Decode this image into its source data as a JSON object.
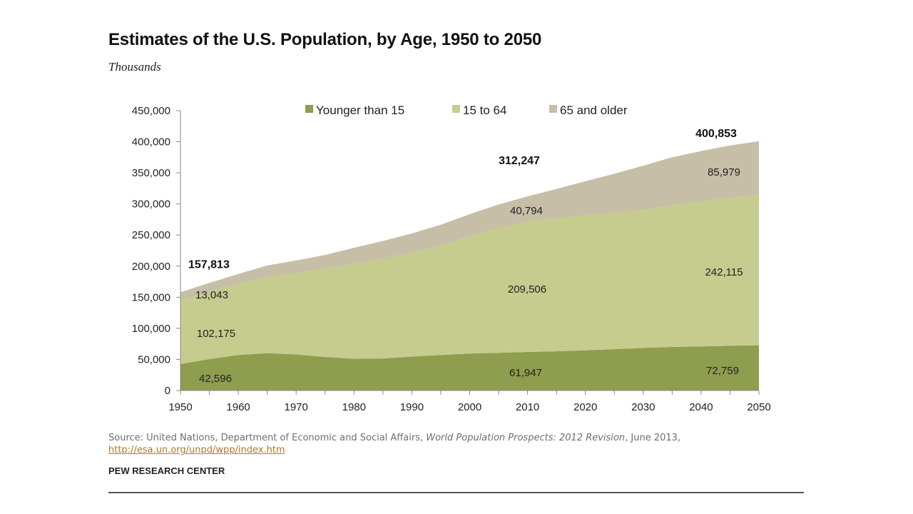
{
  "header": {
    "title": "Estimates of the U.S. Population, by Age, 1950 to 2050",
    "subtitle": "Thousands"
  },
  "source": {
    "prefix": "Source: United Nations, Department of Economic and Social Affairs,",
    "italic": "World Population Prospects: 2012 Revision",
    "suffix": ", June 2013,",
    "link": "http://esa.un.org/unpd/wpp/index.htm"
  },
  "footer": {
    "brand": "PEW RESEARCH CENTER"
  },
  "colors": {
    "younger": "#8f9d4e",
    "working": "#c6cb8e",
    "older": "#c6bea6",
    "axis": "#888888"
  },
  "chart_data": {
    "type": "area",
    "stacked": true,
    "title": "Estimates of the U.S. Population, by Age, 1950 to 2050",
    "subtitle": "Thousands",
    "xlabel": "",
    "ylabel": "",
    "xlim": [
      1950,
      2050
    ],
    "ylim": [
      0,
      450000
    ],
    "x_ticks": [
      1950,
      1960,
      1970,
      1980,
      1990,
      2000,
      2010,
      2020,
      2030,
      2040,
      2050
    ],
    "x_tick_labels": [
      "1950",
      "1960",
      "1970",
      "1980",
      "1990",
      "2000",
      "2010",
      "2020",
      "2030",
      "2040",
      "2050"
    ],
    "y_ticks": [
      0,
      50000,
      100000,
      150000,
      200000,
      250000,
      300000,
      350000,
      400000,
      450000
    ],
    "y_tick_labels": [
      "0",
      "50,000",
      "100,000",
      "150,000",
      "200,000",
      "250,000",
      "300,000",
      "350,000",
      "400,000",
      "450,000"
    ],
    "grid": false,
    "legend_position": "top",
    "x": [
      1950,
      1955,
      1960,
      1965,
      1970,
      1975,
      1980,
      1985,
      1990,
      1995,
      2000,
      2005,
      2010,
      2015,
      2020,
      2025,
      2030,
      2035,
      2040,
      2045,
      2050
    ],
    "series": [
      {
        "name": "Younger than 15",
        "color": "#8f9d4e",
        "values": [
          42596,
          50500,
          57000,
          60000,
          58000,
          54000,
          51000,
          51500,
          54500,
          57000,
          59500,
          60500,
          61947,
          63000,
          64500,
          66500,
          68500,
          70000,
          71000,
          72000,
          72759
        ]
      },
      {
        "name": "15 to 64",
        "color": "#c6cb8e",
        "values": [
          102175,
          108000,
          114000,
          123000,
          131000,
          142000,
          153000,
          161000,
          167000,
          176000,
          189000,
          201000,
          209506,
          214000,
          217000,
          219000,
          222000,
          228000,
          233000,
          238000,
          242115
        ]
      },
      {
        "name": "65 and older",
        "color": "#c6bea6",
        "values": [
          13043,
          14500,
          16500,
          18000,
          20000,
          22000,
          25500,
          28000,
          31000,
          33500,
          35000,
          37500,
          40794,
          47000,
          55000,
          63000,
          71000,
          77000,
          81000,
          84000,
          85979
        ]
      }
    ],
    "total_labels": [
      {
        "x": 1950,
        "text": "157,813"
      },
      {
        "x": 2010,
        "text": "312,247"
      },
      {
        "x": 2050,
        "text": "400,853"
      }
    ],
    "value_labels": [
      {
        "text": "42,596"
      },
      {
        "text": "102,175"
      },
      {
        "text": "13,043"
      },
      {
        "text": "61,947"
      },
      {
        "text": "209,506"
      },
      {
        "text": "40,794"
      },
      {
        "text": "72,759"
      },
      {
        "text": "242,115"
      },
      {
        "text": "85,979"
      }
    ]
  }
}
